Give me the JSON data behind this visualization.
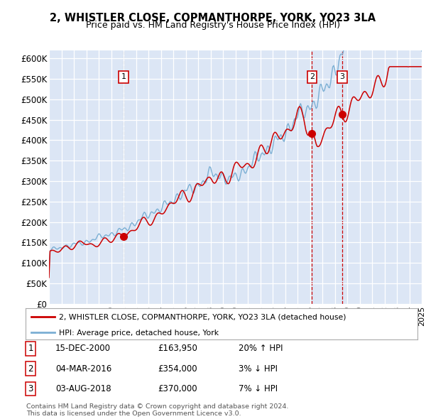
{
  "title": "2, WHISTLER CLOSE, COPMANTHORPE, YORK, YO23 3LA",
  "subtitle": "Price paid vs. HM Land Registry's House Price Index (HPI)",
  "ylim": [
    0,
    620000
  ],
  "yticks": [
    0,
    50000,
    100000,
    150000,
    200000,
    250000,
    300000,
    350000,
    400000,
    450000,
    500000,
    550000,
    600000
  ],
  "ytick_labels": [
    "£0",
    "£50K",
    "£100K",
    "£150K",
    "£200K",
    "£250K",
    "£300K",
    "£350K",
    "£400K",
    "£450K",
    "£500K",
    "£550K",
    "£600K"
  ],
  "background_color": "#dce6f5",
  "legend_line1": "2, WHISTLER CLOSE, COPMANTHORPE, YORK, YO23 3LA (detached house)",
  "legend_line2": "HPI: Average price, detached house, York",
  "sale_times": [
    2001.0,
    2016.17,
    2018.6
  ],
  "sale_prices": [
    163950,
    354000,
    370000
  ],
  "sale_labels": [
    "1",
    "2",
    "3"
  ],
  "sale1_date": "15-DEC-2000",
  "sale1_price_str": "£163,950",
  "sale1_hpi": "20% ↑ HPI",
  "sale2_date": "04-MAR-2016",
  "sale2_price_str": "£354,000",
  "sale2_hpi": "3% ↓ HPI",
  "sale3_date": "03-AUG-2018",
  "sale3_price_str": "£370,000",
  "sale3_hpi": "7% ↓ HPI",
  "footnote1": "Contains HM Land Registry data © Crown copyright and database right 2024.",
  "footnote2": "This data is licensed under the Open Government Licence v3.0.",
  "red_color": "#cc0000",
  "blue_color": "#7bafd4",
  "vline1_color": "#888888",
  "vline23_color": "#cc0000"
}
